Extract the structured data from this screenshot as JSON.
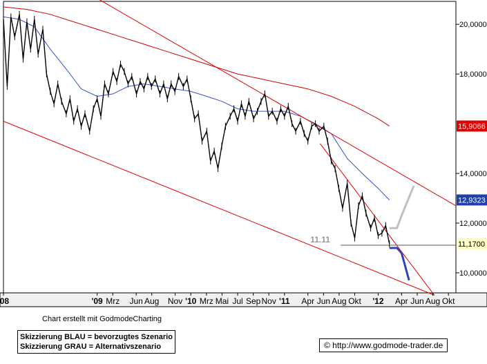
{
  "chart_data": {
    "type": "line",
    "title": "",
    "xlabel": "",
    "ylabel": "",
    "ylim": [
      9.0,
      21.0
    ],
    "xlim": [
      "2008-01",
      "2012-10"
    ],
    "y_ticks": [
      {
        "value": 20,
        "label": "20,0000"
      },
      {
        "value": 18,
        "label": "18,0000"
      },
      {
        "value": 14,
        "label": "14,0000"
      },
      {
        "value": 12,
        "label": "12,0000"
      },
      {
        "value": 10,
        "label": "10,0000"
      }
    ],
    "x_ticks": [
      {
        "t": 2008.0,
        "label": "'08"
      },
      {
        "t": 2009.0,
        "label": "'09"
      },
      {
        "t": 2009.167,
        "label": "Mrz"
      },
      {
        "t": 2009.417,
        "label": "Jun"
      },
      {
        "t": 2009.583,
        "label": "Aug"
      },
      {
        "t": 2009.833,
        "label": "Nov"
      },
      {
        "t": 2010.0,
        "label": "'10"
      },
      {
        "t": 2010.167,
        "label": "Mrz"
      },
      {
        "t": 2010.333,
        "label": "Mai"
      },
      {
        "t": 2010.5,
        "label": "Jul"
      },
      {
        "t": 2010.667,
        "label": "Sep"
      },
      {
        "t": 2010.833,
        "label": "Nov"
      },
      {
        "t": 2011.0,
        "label": "'11"
      },
      {
        "t": 2011.25,
        "label": "Apr"
      },
      {
        "t": 2011.417,
        "label": "Jun"
      },
      {
        "t": 2011.583,
        "label": "Aug"
      },
      {
        "t": 2011.75,
        "label": "Okt"
      },
      {
        "t": 2012.0,
        "label": "'12"
      },
      {
        "t": 2012.25,
        "label": "Apr"
      },
      {
        "t": 2012.417,
        "label": "Jun"
      },
      {
        "t": 2012.583,
        "label": "Aug"
      },
      {
        "t": 2012.75,
        "label": "Okt"
      }
    ],
    "price_labels": [
      {
        "value": 15.9066,
        "label": "15,9066",
        "bg": "#e00000",
        "fg": "#ffffff"
      },
      {
        "value": 12.9323,
        "label": "12,9323",
        "bg": "#2040b0",
        "fg": "#ffffff"
      },
      {
        "value": 11.17,
        "label": "11,1700",
        "bg": "#ffffc0",
        "fg": "#000000"
      }
    ],
    "support": {
      "value": 11.11,
      "label": "11.11",
      "from": 2011.6,
      "to": 2012.83
    },
    "series": [
      {
        "kind": "price",
        "color": "#000000",
        "x": [
          2008.0,
          2008.04,
          2008.08,
          2008.12,
          2008.17,
          2008.21,
          2008.25,
          2008.29,
          2008.33,
          2008.37,
          2008.42,
          2008.46,
          2008.5,
          2008.54,
          2008.58,
          2008.62,
          2008.67,
          2008.71,
          2008.75,
          2008.79,
          2008.83,
          2008.87,
          2008.92,
          2008.96,
          2009.0,
          2009.04,
          2009.08,
          2009.12,
          2009.17,
          2009.21,
          2009.25,
          2009.29,
          2009.33,
          2009.37,
          2009.42,
          2009.46,
          2009.5,
          2009.54,
          2009.58,
          2009.62,
          2009.67,
          2009.71,
          2009.75,
          2009.79,
          2009.83,
          2009.87,
          2009.92,
          2009.96,
          2010.0,
          2010.04,
          2010.08,
          2010.12,
          2010.17,
          2010.21,
          2010.25,
          2010.29,
          2010.33,
          2010.37,
          2010.42,
          2010.46,
          2010.5,
          2010.54,
          2010.58,
          2010.62,
          2010.67,
          2010.71,
          2010.75,
          2010.79,
          2010.83,
          2010.87,
          2010.92,
          2010.96,
          2011.0,
          2011.04,
          2011.08,
          2011.12,
          2011.17,
          2011.21,
          2011.25,
          2011.29,
          2011.33,
          2011.37,
          2011.42,
          2011.46,
          2011.5,
          2011.54,
          2011.58,
          2011.62,
          2011.67,
          2011.71,
          2011.75,
          2011.79,
          2011.83,
          2011.87,
          2011.92,
          2011.96,
          2012.0,
          2012.04,
          2012.08,
          2012.12
        ],
        "values": [
          20.2,
          17.5,
          20.3,
          19.5,
          20.4,
          18.6,
          20.1,
          19.0,
          20.2,
          18.8,
          19.8,
          18.0,
          17.3,
          16.8,
          17.6,
          16.9,
          16.4,
          17.0,
          16.1,
          16.6,
          15.9,
          16.4,
          15.7,
          16.6,
          17.0,
          16.3,
          17.6,
          17.2,
          18.1,
          17.7,
          18.4,
          18.1,
          17.6,
          17.9,
          17.2,
          17.7,
          17.4,
          17.9,
          17.5,
          17.8,
          17.2,
          17.6,
          17.0,
          17.6,
          17.3,
          17.9,
          17.5,
          17.8,
          17.0,
          16.2,
          16.4,
          15.3,
          15.7,
          14.5,
          14.9,
          14.2,
          15.1,
          15.9,
          16.3,
          16.6,
          16.1,
          16.8,
          16.3,
          16.9,
          16.2,
          16.5,
          16.9,
          17.2,
          16.3,
          16.5,
          16.1,
          16.6,
          16.3,
          16.7,
          16.0,
          15.7,
          16.1,
          15.6,
          15.3,
          15.9,
          16.0,
          15.7,
          15.9,
          15.3,
          14.5,
          14.2,
          13.4,
          12.6,
          13.6,
          12.0,
          11.4,
          12.7,
          13.1,
          12.4,
          11.8,
          12.2,
          11.5,
          11.6,
          11.9,
          11.17
        ]
      },
      {
        "kind": "ma-short",
        "color": "#3050d0",
        "x": [
          2008.0,
          2008.17,
          2008.33,
          2008.5,
          2008.67,
          2008.83,
          2009.0,
          2009.17,
          2009.33,
          2009.5,
          2009.67,
          2009.83,
          2010.0,
          2010.17,
          2010.33,
          2010.5,
          2010.67,
          2010.83,
          2011.0,
          2011.17,
          2011.33,
          2011.5,
          2011.67,
          2011.83,
          2012.0,
          2012.12
        ],
        "values": [
          20.3,
          20.2,
          19.9,
          19.0,
          18.2,
          17.4,
          17.1,
          17.2,
          17.5,
          17.6,
          17.5,
          17.4,
          17.3,
          17.1,
          16.9,
          16.6,
          16.5,
          16.5,
          16.5,
          16.3,
          16.0,
          15.6,
          14.6,
          14.0,
          13.4,
          12.93
        ]
      },
      {
        "kind": "ma-long",
        "color": "#cc0000",
        "x": [
          2008.0,
          2008.25,
          2008.5,
          2008.75,
          2009.0,
          2009.25,
          2009.5,
          2009.75,
          2010.0,
          2010.25,
          2010.5,
          2010.75,
          2011.0,
          2011.25,
          2011.5,
          2011.75,
          2012.0,
          2012.12
        ],
        "values": [
          20.7,
          20.6,
          20.4,
          20.1,
          19.8,
          19.5,
          19.2,
          18.9,
          18.6,
          18.3,
          18.0,
          17.8,
          17.6,
          17.4,
          17.1,
          16.7,
          16.2,
          15.91
        ]
      },
      {
        "kind": "trend-upper",
        "color": "#e00000",
        "x": [
          2009.02,
          2012.83
        ],
        "values": [
          21.0,
          12.7
        ]
      },
      {
        "kind": "trend-lower",
        "color": "#e00000",
        "x": [
          2008.0,
          2012.6
        ],
        "values": [
          16.1,
          9.1
        ]
      },
      {
        "kind": "trend-steep",
        "color": "#e00000",
        "x": [
          2011.38,
          2012.6
        ],
        "values": [
          15.2,
          9.1
        ]
      },
      {
        "kind": "scenario-blue",
        "color": "#3040c0",
        "x": [
          2012.12,
          2012.2,
          2012.25,
          2012.33
        ],
        "values": [
          11.0,
          11.0,
          10.8,
          9.7
        ]
      },
      {
        "kind": "scenario-grey",
        "color": "#c0c0c0",
        "x": [
          2012.12,
          2012.2,
          2012.25,
          2012.38
        ],
        "values": [
          11.8,
          11.8,
          12.3,
          13.5
        ]
      }
    ]
  },
  "caption": "Chart erstellt mit GodmodeCharting",
  "legend": {
    "line1": "Skizzierung BLAU = bevorzugtes Szenario",
    "line2": "Skizzierung GRAU = Alternativszenario"
  },
  "copyright": "© http://www.godmode-trader.de"
}
